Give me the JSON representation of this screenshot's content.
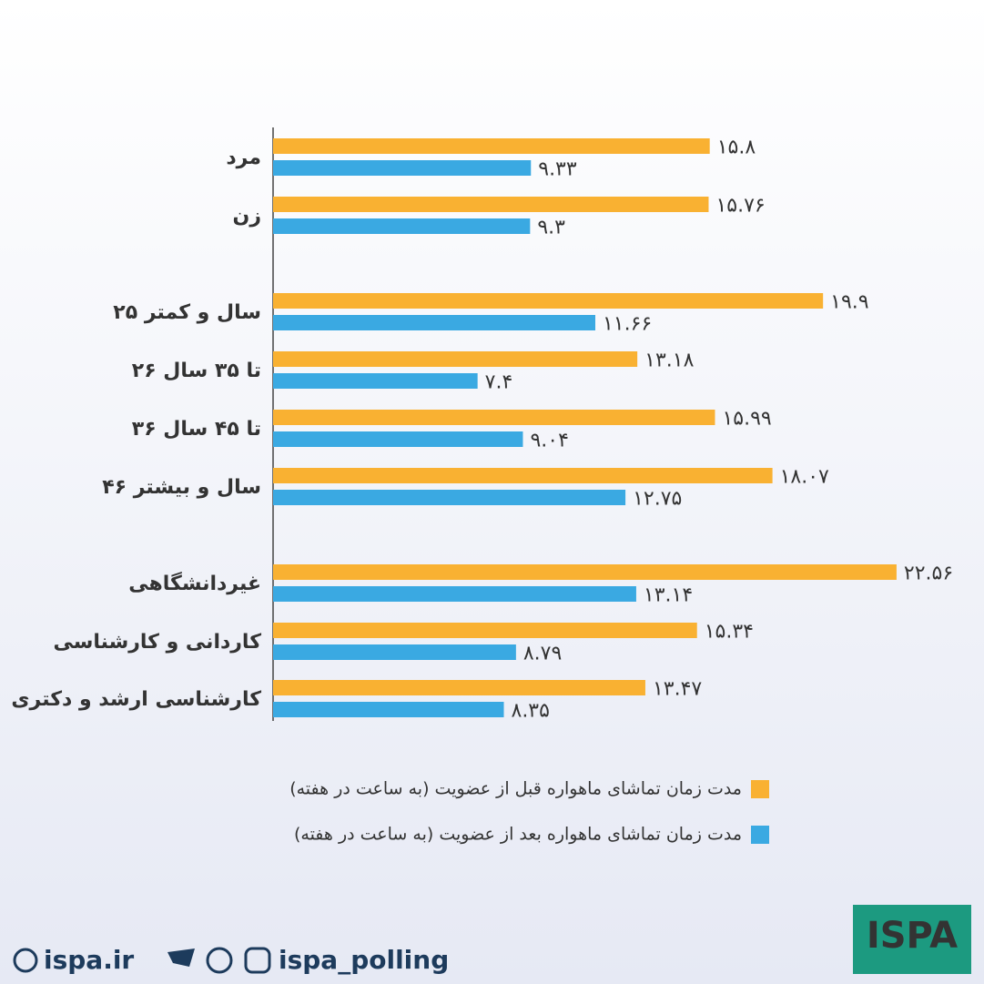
{
  "chart_data": {
    "type": "bar",
    "orientation": "horizontal",
    "categories": [
      "مرد",
      "زن",
      "۲۵ سال و کمتر",
      "۲۶ تا ۳۵ سال",
      "۳۶ تا ۴۵ سال",
      "۴۶ سال و بیشتر",
      "غیردانشگاهی",
      "کاردانی و کارشناسی",
      "کارشناسی ارشد و دکتری"
    ],
    "series": [
      {
        "name": "مدت زمان تماشای ماهواره قبل از عضویت (به ساعت در هفته)",
        "color": "#f9b132",
        "values": [
          15.8,
          15.76,
          19.9,
          13.18,
          15.99,
          18.07,
          22.56,
          15.34,
          13.47
        ],
        "value_labels": [
          "۱۵.۸",
          "۱۵.۷۶",
          "۱۹.۹",
          "۱۳.۱۸",
          "۱۵.۹۹",
          "۱۸.۰۷",
          "۲۲.۵۶",
          "۱۵.۳۴",
          "۱۳.۴۷"
        ]
      },
      {
        "name": "مدت زمان تماشای ماهواره بعد از عضویت (به ساعت در هفته)",
        "color": "#3aa9e2",
        "values": [
          9.33,
          9.3,
          11.66,
          7.4,
          9.04,
          12.75,
          13.14,
          8.79,
          8.35
        ],
        "value_labels": [
          "۹.۳۳",
          "۹.۳",
          "۱۱.۶۶",
          "۷.۴",
          "۹.۰۴",
          "۱۲.۷۵",
          "۱۳.۱۴",
          "۸.۷۹",
          "۸.۳۵"
        ]
      }
    ]
  },
  "footer": {
    "website": "ispa.ir",
    "handle": "ispa_polling",
    "logo": "ISPA"
  }
}
